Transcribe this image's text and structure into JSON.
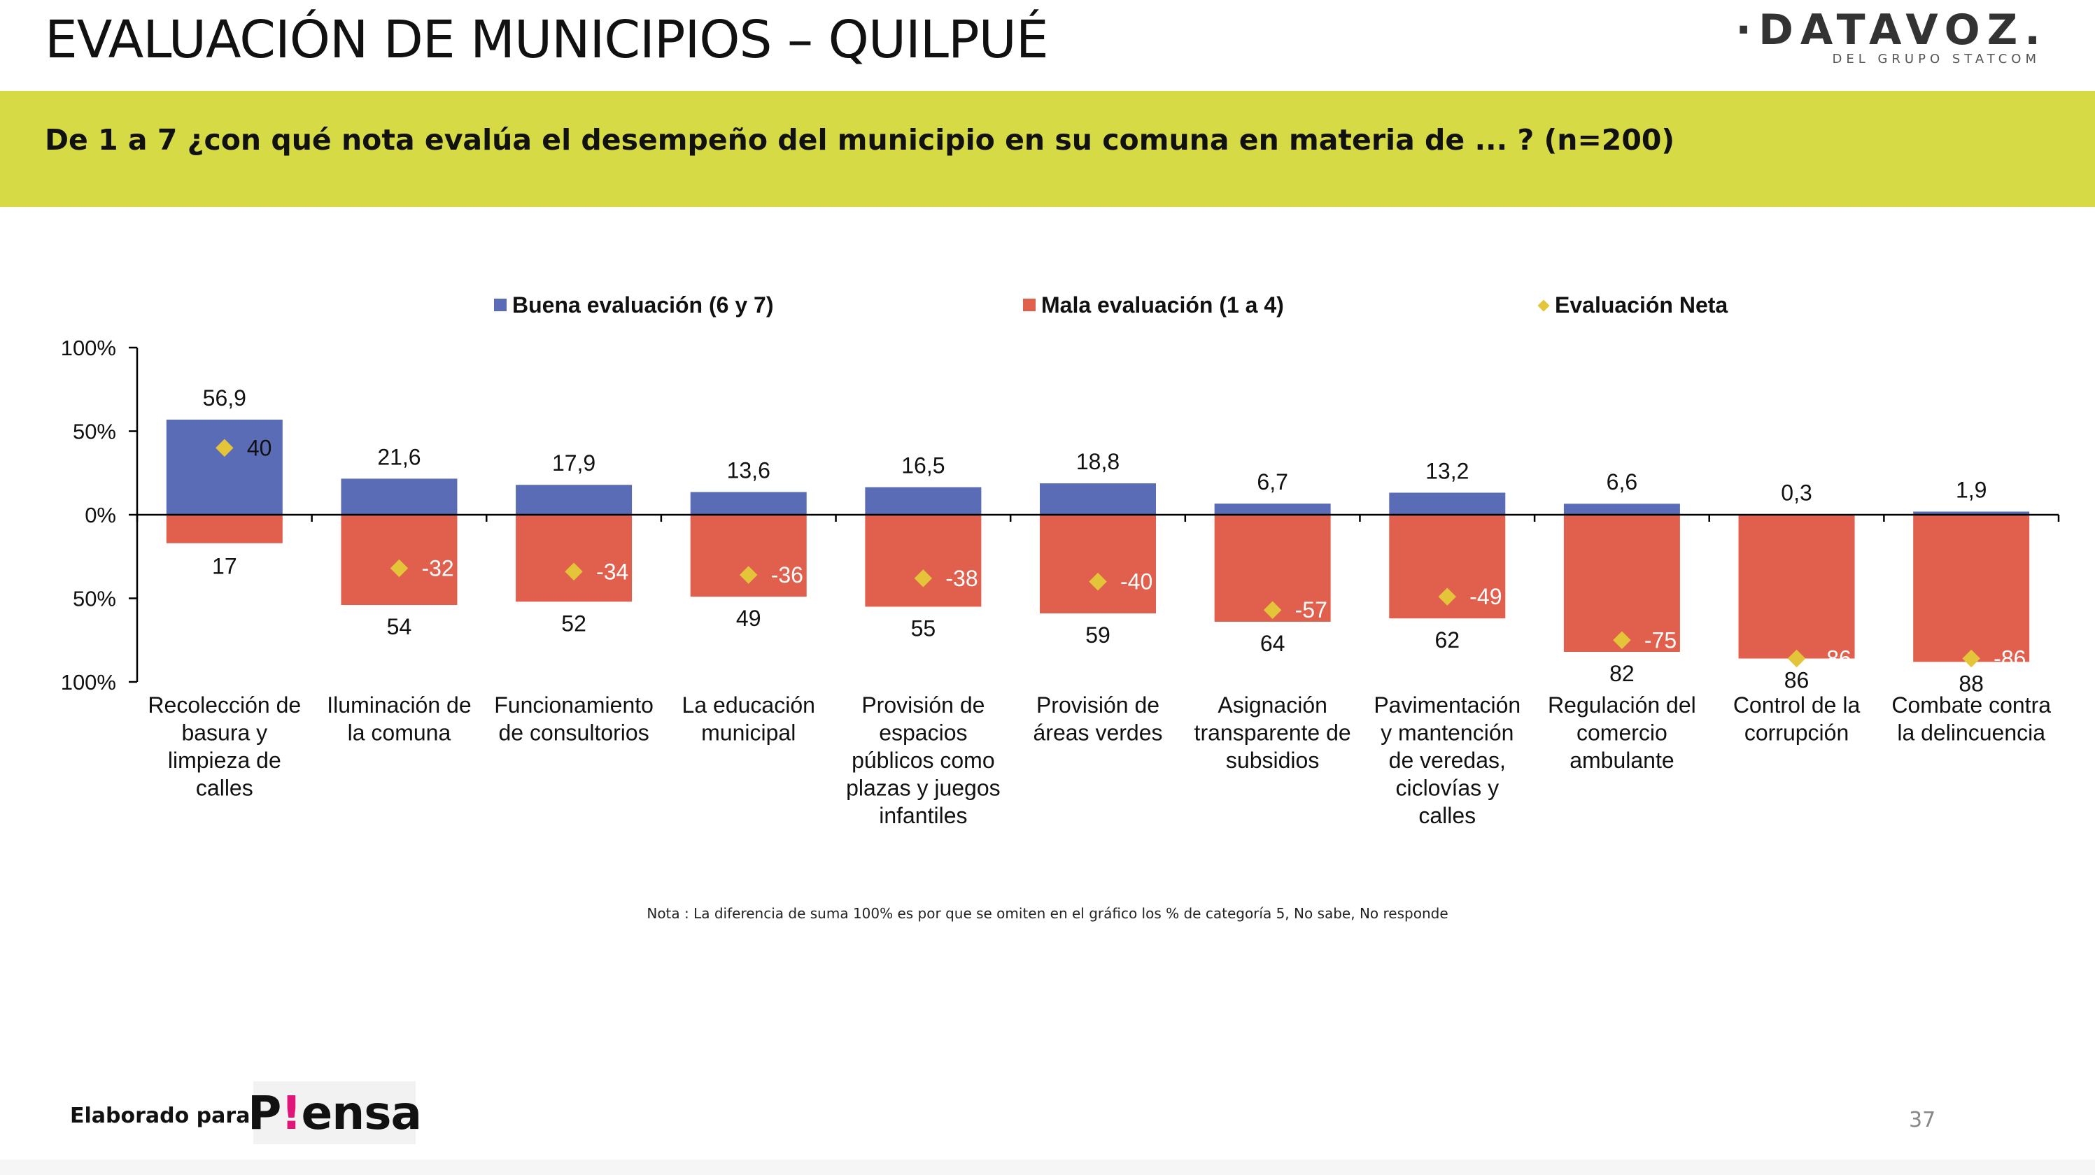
{
  "header": {
    "title": "EVALUACIÓN DE MUNICIPIOS – QUILPUÉ",
    "logo_text": "·DATAVOZ.",
    "logo_subtitle": "DEL GRUPO STATCOM"
  },
  "question": "De 1 a 7 ¿con qué nota evalúa el desempeño del municipio en su comuna en materia de ... ? (n=200)",
  "note": "Nota : La diferencia de suma 100% es por que se omiten en el gráfico los % de categoría 5, No sabe, No responde",
  "footer": {
    "label": "Elaborado para:",
    "client_logo_text": "Piensa",
    "page_number": "37"
  },
  "colors": {
    "good": "#5b6cb6",
    "bad": "#e0604d",
    "net": "#e4c53a",
    "band": "#d5da45"
  },
  "chart_data": {
    "type": "bar",
    "categories": [
      "Recolección de basura y limpieza de calles",
      "Iluminación de la comuna",
      "Funcionamiento de consultorios",
      "La educación municipal",
      "Provisión de espacios públicos como plazas y juegos infantiles",
      "Provisión de áreas verdes",
      "Asignación transparente de subsidios",
      "Pavimentación y mantención de veredas, ciclovías y calles",
      "Regulación del comercio ambulante",
      "Control de la corrupción",
      "Combate contra la delincuencia"
    ],
    "category_lines": [
      [
        "Recolección de",
        "basura y",
        "limpieza de",
        "calles"
      ],
      [
        "Iluminación de",
        "la comuna"
      ],
      [
        "Funcionamiento",
        "de consultorios"
      ],
      [
        "La educación",
        "municipal"
      ],
      [
        "Provisión de",
        "espacios",
        "públicos como",
        "plazas y juegos",
        "infantiles"
      ],
      [
        "Provisión de",
        "áreas verdes"
      ],
      [
        "Asignación",
        "transparente de",
        "subsidios"
      ],
      [
        "Pavimentación",
        "y mantención",
        "de veredas,",
        "ciclovías y",
        "calles"
      ],
      [
        "Regulación del",
        "comercio",
        "ambulante"
      ],
      [
        "Control de la",
        "corrupción"
      ],
      [
        "Combate contra",
        "la delincuencia"
      ]
    ],
    "series": [
      {
        "name": "Buena evaluación (6 y 7)",
        "values": [
          56.9,
          21.6,
          17.9,
          13.6,
          16.5,
          18.8,
          6.7,
          13.2,
          6.6,
          0.3,
          1.9
        ],
        "labels": [
          "56,9",
          "21,6",
          "17,9",
          "13,6",
          "16,5",
          "18,8",
          "6,7",
          "13,2",
          "6,6",
          "0,3",
          "1,9"
        ]
      },
      {
        "name": "Mala evaluación (1 a 4)",
        "values": [
          17,
          54,
          52,
          49,
          55,
          59,
          64,
          62,
          82,
          86,
          88
        ],
        "labels": [
          "17",
          "54",
          "52",
          "49",
          "55",
          "59",
          "64",
          "62",
          "82",
          "86",
          "88"
        ]
      },
      {
        "name": "Evaluación Neta",
        "values": [
          40,
          -32,
          -34,
          -36,
          -38,
          -40,
          -57,
          -49,
          -75,
          -86,
          -86
        ],
        "labels": [
          "40",
          "-32",
          "-34",
          "-36",
          "-38",
          "-40",
          "-57",
          "-49",
          "-75",
          "-86",
          "-86"
        ]
      }
    ],
    "y_ticks": [
      {
        "value": 100,
        "label": "100%"
      },
      {
        "value": 50,
        "label": "50%"
      },
      {
        "value": 0,
        "label": "0%"
      },
      {
        "value": -50,
        "label": "50%"
      },
      {
        "value": -100,
        "label": "100%"
      }
    ],
    "ylim": [
      -100,
      100
    ],
    "legend_position": "top",
    "grid": false,
    "xlabel": "",
    "ylabel": ""
  }
}
